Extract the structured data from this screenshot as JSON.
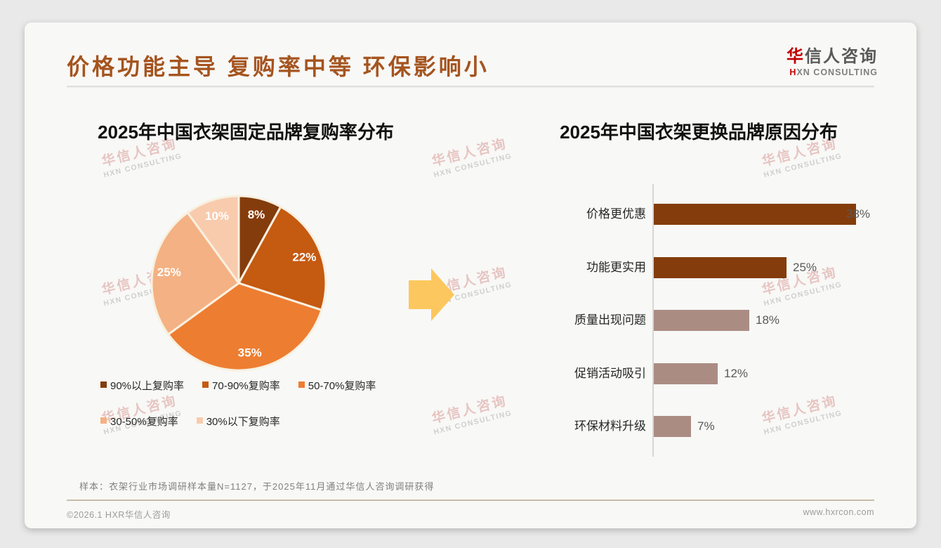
{
  "header": {
    "title": "价格功能主导 复购率中等 环保影响小",
    "logo": {
      "zh_accent": "华",
      "zh_rest": "信人咨询",
      "en_accent": "H",
      "en_rest": "XN CONSULTING"
    }
  },
  "watermark": {
    "zh": "华信人咨询",
    "en": "HXN CONSULTING"
  },
  "footnote": "样本：衣架行业市场调研样本量N=1127，于2025年11月通过华信人咨询调研获得",
  "footer": {
    "left": "©2026.1 HXR华信人咨询",
    "right": "www.hxrcon.com"
  },
  "arrow_color": "#FCC75E",
  "chart_data": [
    {
      "type": "pie",
      "title": "2025年中国衣架固定品牌复购率分布",
      "labels": [
        "90%以上复购率",
        "70-90%复购率",
        "50-70%复购率",
        "30-50%复购率",
        "30%以下复购率"
      ],
      "values": [
        8,
        22,
        35,
        25,
        10
      ],
      "data_labels": [
        "8%",
        "22%",
        "35%",
        "25%",
        "10%"
      ],
      "colors": [
        "#843C0C",
        "#C55A11",
        "#ED7D31",
        "#F4B183",
        "#F8CBAD"
      ],
      "start_angle_deg": 0,
      "direction": "clockwise",
      "legend_position": "bottom",
      "slice_border_color": "#F8F0E0"
    },
    {
      "type": "bar",
      "title": "2025年中国衣架更换品牌原因分布",
      "orientation": "horizontal",
      "categories": [
        "价格更优惠",
        "功能更实用",
        "质量出现问题",
        "促销活动吸引",
        "环保材料升级"
      ],
      "values": [
        38,
        25,
        18,
        12,
        7
      ],
      "data_labels": [
        "38%",
        "25%",
        "18%",
        "12%",
        "7%"
      ],
      "bar_colors": [
        "#843C0C",
        "#843C0C",
        "#AB8C83",
        "#AB8C83",
        "#AB8C83"
      ],
      "xlim": [
        0,
        40
      ],
      "grid": false,
      "axis_color": "#D6D6D6"
    }
  ]
}
